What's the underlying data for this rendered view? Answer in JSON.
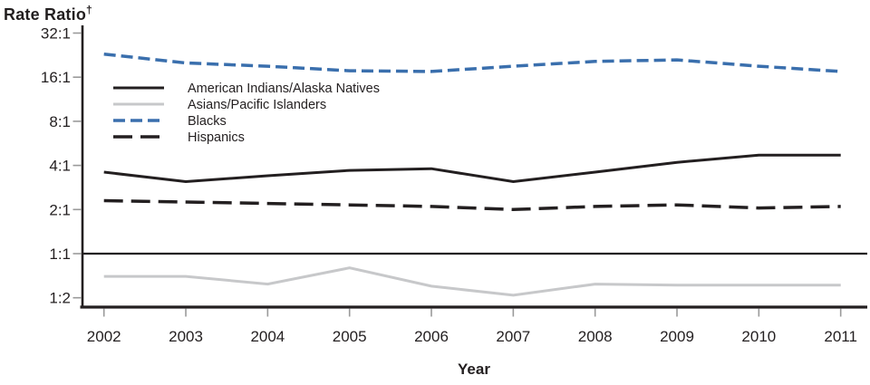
{
  "title": {
    "text": "Rate Ratio",
    "dagger": "†"
  },
  "chart_data": {
    "type": "line",
    "title": "Rate Ratio†",
    "xlabel": "Year",
    "ylabel": "Rate Ratio†",
    "y_scale": "log2",
    "y_tick_labels": [
      "32:1",
      "16:1",
      "8:1",
      "4:1",
      "2:1",
      "1:1",
      "1:2"
    ],
    "y_tick_values": [
      32,
      16,
      8,
      4,
      2,
      1,
      0.5
    ],
    "reference_line_value": 1,
    "grid": "off",
    "legend_position": "inside-upper-left",
    "categories": [
      "2002",
      "2003",
      "2004",
      "2005",
      "2006",
      "2007",
      "2008",
      "2009",
      "2010",
      "2011"
    ],
    "series": [
      {
        "name": "American Indians/Alaska Natives",
        "color": "#231f20",
        "line_style": "solid",
        "values": [
          3.6,
          3.1,
          3.4,
          3.7,
          3.8,
          3.1,
          3.6,
          4.2,
          4.7,
          4.7
        ]
      },
      {
        "name": "Asians/Pacific Islanders",
        "color": "#c7c8ca",
        "line_style": "solid",
        "values": [
          0.7,
          0.7,
          0.62,
          0.8,
          0.6,
          0.52,
          0.62,
          0.61,
          0.61,
          0.61
        ]
      },
      {
        "name": "Blacks",
        "color": "#3a6fad",
        "line_style": "dashed",
        "values": [
          23,
          20,
          19,
          17.7,
          17.5,
          19,
          20.5,
          21,
          19,
          17.5
        ]
      },
      {
        "name": "Hispanics",
        "color": "#231f20",
        "line_style": "long-dashed",
        "values": [
          2.3,
          2.25,
          2.2,
          2.15,
          2.1,
          2.0,
          2.1,
          2.15,
          2.05,
          2.1
        ]
      }
    ]
  },
  "colors": {
    "axis": "#231f20",
    "tick": "#9a9a9a",
    "text": "#231f20"
  }
}
